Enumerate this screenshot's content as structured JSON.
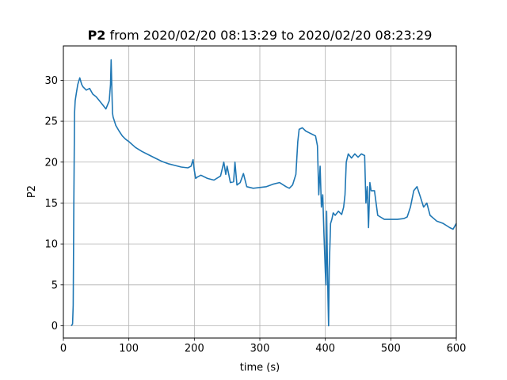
{
  "chart_data": {
    "type": "line",
    "title_bold": "P2",
    "title_rest": " from 2020/02/20 08:13:29 to 2020/02/20 08:23:29",
    "xlabel": "time (s)",
    "ylabel": "P2",
    "xlim": [
      0,
      600
    ],
    "ylim": [
      -1.5,
      34.2
    ],
    "xticks": [
      0,
      100,
      200,
      300,
      400,
      500,
      600
    ],
    "yticks": [
      0,
      5,
      10,
      15,
      20,
      25,
      30
    ],
    "grid": true,
    "line_color": "#1f77b4",
    "series": [
      {
        "x": [
          12,
          14,
          15,
          16,
          17,
          18,
          20,
          22,
          25,
          28,
          30,
          35,
          40,
          45,
          50,
          55,
          60,
          65,
          70,
          72,
          73,
          74,
          75,
          76,
          78,
          80,
          85,
          90,
          95,
          100,
          110,
          120,
          130,
          140,
          150,
          160,
          170,
          180,
          190,
          195,
          198,
          200,
          202,
          205,
          210,
          220,
          230,
          240,
          245,
          248,
          250,
          255,
          260,
          262,
          265,
          270,
          275,
          280,
          290,
          300,
          310,
          320,
          330,
          340,
          345,
          350,
          355,
          358,
          360,
          365,
          370,
          375,
          380,
          385,
          388,
          390,
          392,
          394,
          396,
          398,
          400,
          401,
          402,
          403,
          404,
          405,
          406,
          408,
          410,
          412,
          415,
          420,
          425,
          428,
          430,
          432,
          435,
          440,
          445,
          450,
          455,
          460,
          462,
          464,
          466,
          468,
          470,
          475,
          480,
          490,
          500,
          510,
          520,
          525,
          530,
          535,
          540,
          545,
          550,
          555,
          560,
          570,
          580,
          590,
          595,
          600
        ],
        "y": [
          0,
          0.2,
          2.5,
          15,
          26,
          27.5,
          28.5,
          29.5,
          30.3,
          29.5,
          29.2,
          28.8,
          29.0,
          28.3,
          28.0,
          27.5,
          27.0,
          26.5,
          27.5,
          29.5,
          32.5,
          29.0,
          26.0,
          25.5,
          25.0,
          24.5,
          23.8,
          23.2,
          22.8,
          22.5,
          21.8,
          21.3,
          20.9,
          20.5,
          20.1,
          19.8,
          19.6,
          19.4,
          19.3,
          19.5,
          20.3,
          19.0,
          18.0,
          18.2,
          18.4,
          18.0,
          17.8,
          18.3,
          20.0,
          18.5,
          19.5,
          17.5,
          17.6,
          20.0,
          17.2,
          17.5,
          18.6,
          17.0,
          16.8,
          16.9,
          17.0,
          17.3,
          17.5,
          17.0,
          16.8,
          17.2,
          18.5,
          22.5,
          24.0,
          24.2,
          23.8,
          23.6,
          23.4,
          23.2,
          22.0,
          16.0,
          19.5,
          14.5,
          16.0,
          11.0,
          6.5,
          5.0,
          14.0,
          9.0,
          3.5,
          0,
          7.0,
          12.5,
          13.0,
          13.8,
          13.5,
          14.0,
          13.6,
          14.5,
          16.0,
          20.0,
          21.0,
          20.5,
          21.0,
          20.6,
          21.0,
          20.8,
          15.0,
          17.0,
          12.0,
          17.5,
          16.5,
          16.5,
          13.5,
          13.0,
          13.0,
          13.0,
          13.1,
          13.3,
          14.5,
          16.5,
          17.0,
          15.8,
          14.5,
          15.0,
          13.5,
          12.8,
          12.5,
          12.0,
          11.8,
          12.5
        ]
      }
    ]
  }
}
